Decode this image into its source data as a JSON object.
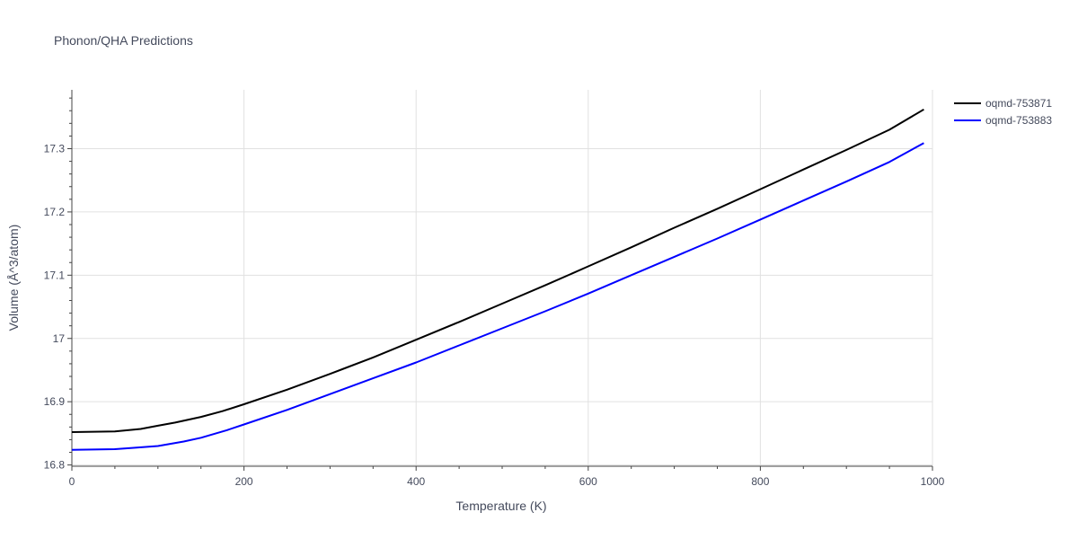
{
  "chart_data": {
    "type": "line",
    "title": "Phonon/QHA Predictions",
    "xlabel": "Temperature (K)",
    "ylabel": "Volume (Å^3/atom)",
    "xlim": [
      0,
      1000
    ],
    "ylim": [
      16.798,
      17.393
    ],
    "xticks": [
      0,
      200,
      400,
      600,
      800,
      1000
    ],
    "yticks": [
      16.8,
      16.9,
      17,
      17.1,
      17.2,
      17.3
    ],
    "xtick_labels": [
      "0",
      "200",
      "400",
      "600",
      "800",
      "1000"
    ],
    "ytick_labels": [
      "16.8",
      "16.9",
      "17",
      "17.1",
      "17.2",
      "17.3"
    ],
    "grid": true,
    "legend_position": "top-right",
    "series": [
      {
        "name": "oqmd-753871",
        "color": "#000000",
        "x": [
          0,
          50,
          80,
          100,
          120,
          150,
          175,
          200,
          250,
          300,
          350,
          400,
          450,
          500,
          550,
          600,
          650,
          700,
          750,
          800,
          850,
          900,
          950,
          990
        ],
        "y": [
          16.852,
          16.853,
          16.857,
          16.862,
          16.867,
          16.876,
          16.885,
          16.896,
          16.919,
          16.944,
          16.97,
          16.998,
          17.026,
          17.055,
          17.084,
          17.114,
          17.144,
          17.175,
          17.205,
          17.236,
          17.267,
          17.298,
          17.33,
          17.362
        ]
      },
      {
        "name": "oqmd-753883",
        "color": "#0000ff",
        "x": [
          0,
          50,
          70,
          100,
          130,
          150,
          180,
          200,
          250,
          300,
          350,
          400,
          450,
          500,
          550,
          600,
          650,
          700,
          750,
          800,
          850,
          900,
          950,
          990
        ],
        "y": [
          16.824,
          16.825,
          16.827,
          16.83,
          16.837,
          16.843,
          16.855,
          16.864,
          16.887,
          16.912,
          16.937,
          16.962,
          16.989,
          17.016,
          17.043,
          17.071,
          17.1,
          17.129,
          17.158,
          17.188,
          17.218,
          17.248,
          17.279,
          17.309
        ]
      }
    ]
  }
}
